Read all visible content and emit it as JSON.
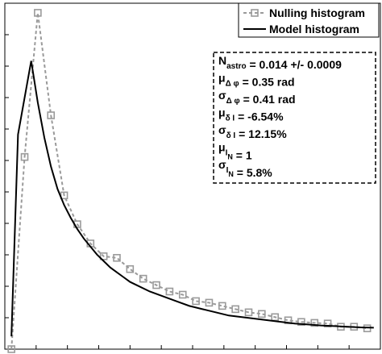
{
  "chart_data": {
    "type": "line",
    "title": "",
    "xlabel": "",
    "ylabel": "",
    "xlim": [
      0,
      28.5
    ],
    "ylim": [
      0,
      1.08
    ],
    "grid": false,
    "legend_position": "top-right",
    "series": [
      {
        "name": "Nulling histogram",
        "style": "dashed-gray-square-markers",
        "color": "#9a9a9a",
        "x": [
          0.5,
          1.5,
          2.5,
          3.5,
          4.5,
          5.5,
          6.5,
          7.5,
          8.5,
          9.5,
          10.5,
          11.5,
          12.5,
          13.5,
          14.5,
          15.5,
          16.5,
          17.5,
          18.5,
          19.5,
          20.5,
          21.5,
          22.5,
          23.5,
          24.5,
          25.5,
          26.5,
          27.5
        ],
        "y": [
          0.0,
          0.6,
          1.05,
          0.73,
          0.48,
          0.39,
          0.33,
          0.29,
          0.285,
          0.25,
          0.22,
          0.2,
          0.18,
          0.17,
          0.15,
          0.145,
          0.135,
          0.125,
          0.115,
          0.11,
          0.1,
          0.09,
          0.085,
          0.082,
          0.08,
          0.07,
          0.07,
          0.065
        ]
      },
      {
        "name": "Model histogram",
        "style": "solid-black",
        "color": "#000000",
        "x": [
          0.5,
          1.0,
          2.0,
          2.5,
          3.0,
          3.5,
          4.0,
          4.5,
          5.0,
          5.5,
          6.0,
          6.5,
          7.0,
          7.5,
          8.0,
          8.5,
          9.0,
          9.5,
          10.0,
          11.0,
          12.0,
          13.0,
          14.0,
          15.0,
          16.0,
          17.0,
          18.0,
          19.0,
          20.0,
          21.0,
          22.0,
          23.0,
          24.0,
          25.0,
          26.0,
          27.0,
          28.0
        ],
        "y": [
          0.04,
          0.67,
          0.9,
          0.77,
          0.66,
          0.57,
          0.5,
          0.45,
          0.41,
          0.375,
          0.345,
          0.32,
          0.295,
          0.275,
          0.255,
          0.24,
          0.225,
          0.21,
          0.2,
          0.18,
          0.165,
          0.15,
          0.135,
          0.125,
          0.115,
          0.105,
          0.1,
          0.095,
          0.09,
          0.085,
          0.08,
          0.077,
          0.074,
          0.072,
          0.07,
          0.068,
          0.067
        ]
      }
    ]
  },
  "annotation": {
    "lines": [
      {
        "main": "N",
        "sub": "astro",
        "value": " = 0.014 +/- 0.0009"
      },
      {
        "main": "μ",
        "sub": "Δ φ",
        "value": " = 0.35 rad"
      },
      {
        "main": "σ",
        "sub": "Δ φ",
        "value": " = 0.41 rad"
      },
      {
        "main": "μ",
        "sub": "δ I",
        "value": " = -6.54%"
      },
      {
        "main": "σ",
        "sub": "δ I",
        "value": " = 12.15%"
      },
      {
        "main": "μ",
        "sub": "I",
        "sup": "N",
        "value": " = 1"
      },
      {
        "main": "σ",
        "sub": "I",
        "sup": "N",
        "value": " = 5.8%"
      }
    ]
  }
}
